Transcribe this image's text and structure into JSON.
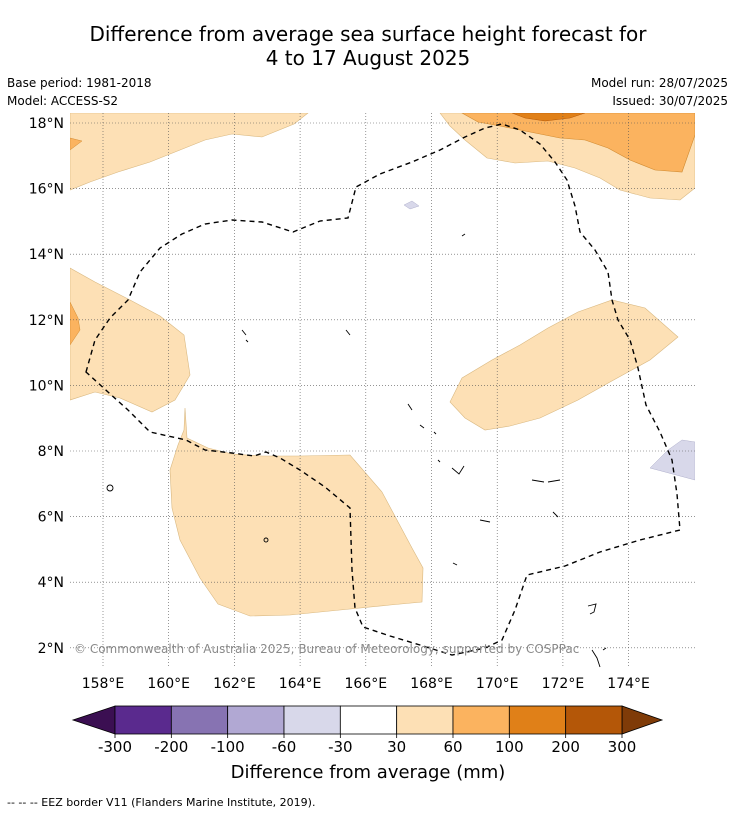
{
  "title": {
    "line1": "Difference from average sea surface height forecast for",
    "line2": "4 to 17 August 2025"
  },
  "meta": {
    "base_period": "Base period: 1981-2018",
    "model": "Model: ACCESS-S2",
    "model_run": "Model run: 28/07/2025",
    "issued": "Issued: 30/07/2025"
  },
  "map": {
    "lat_labels": [
      "18°N",
      "16°N",
      "14°N",
      "12°N",
      "10°N",
      "8°N",
      "6°N",
      "4°N",
      "2°N"
    ],
    "lon_labels": [
      "158°E",
      "160°E",
      "162°E",
      "164°E",
      "166°E",
      "168°E",
      "170°E",
      "172°E",
      "174°E"
    ],
    "attribution": "© Commonwealth of Australia 2025, Bureau of Meteorology, supported by COSPPac",
    "colors": {
      "low_positive": "#fde0b5",
      "mid_positive": "#fbb35f",
      "high_positive": "#e8891c",
      "slight_negative": "#d8d8ea",
      "eez_line": "#000000"
    }
  },
  "colorbar": {
    "ticks": [
      "-300",
      "-200",
      "-100",
      "-60",
      "-30",
      "30",
      "60",
      "100",
      "200",
      "300"
    ],
    "colors": [
      "#5a2a8e",
      "#8773b2",
      "#b1a8d3",
      "#d8d8ea",
      "#ffffff",
      "#fde0b5",
      "#fbb35f",
      "#e08018",
      "#b45708"
    ],
    "under_color": "#3b0f52",
    "over_color": "#7f3b08",
    "label": "Difference from average (mm)"
  },
  "footer": "--  --  -- EEZ border V11 (Flanders Marine Institute, 2019)."
}
